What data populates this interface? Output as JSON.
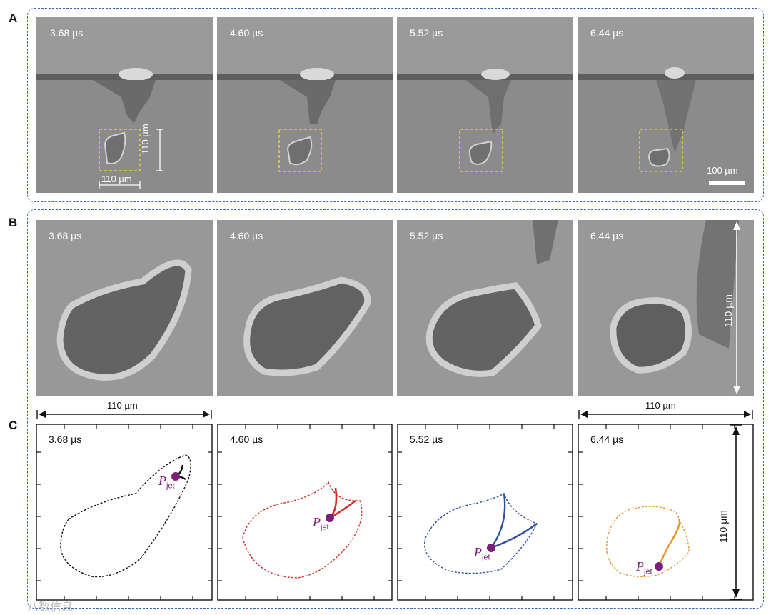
{
  "panels": {
    "A": {
      "letter": "A",
      "times": [
        "3.68 µs",
        "4.60 µs",
        "5.52  µs",
        "6.44 µs"
      ],
      "roi_height_label": "110 µm",
      "roi_width_label": "110 µm",
      "scale_bar_label": "100 µm"
    },
    "B": {
      "letter": "B",
      "times": [
        "3.68 µs",
        "4.60 µs",
        "5.52  µs",
        "6.44 µs"
      ],
      "vertical_label": "110 µm",
      "left_width_label": "110 µm",
      "right_width_label": "110 µm"
    },
    "C": {
      "letter": "C",
      "times": [
        "3.68 µs",
        "4.60 µs",
        "5.52  µs",
        "6.44 µs"
      ],
      "jet_symbol": "P",
      "jet_subscript": "jet",
      "vertical_label": "110 µm"
    }
  },
  "colors": {
    "frame": "#3b62b0",
    "roi": "#f2e12b",
    "t1": "#111111",
    "t2": "#d0312d",
    "t3": "#2f4e9c",
    "t4": "#eb9327",
    "jet_point": "#7a1f7a"
  },
  "watermark": "八数信息"
}
